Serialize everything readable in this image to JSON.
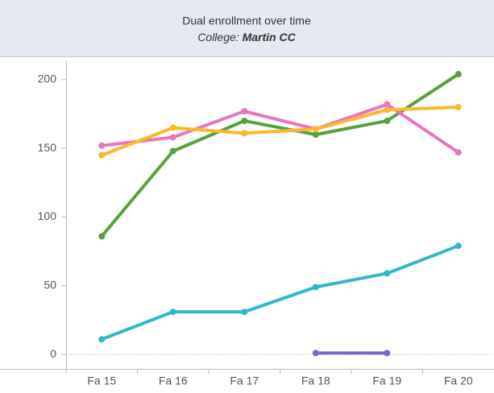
{
  "chart_data": {
    "type": "line",
    "title": "Dual enrollment over time",
    "subtitle_label": "College:",
    "subtitle_value": "Martin CC",
    "categories": [
      "Fa 15",
      "Fa 16",
      "Fa 17",
      "Fa 18",
      "Fa 19",
      "Fa 20"
    ],
    "series": [
      {
        "color": "#57a13b",
        "values": [
          86,
          148,
          170,
          160,
          170,
          204
        ]
      },
      {
        "color": "#e875be",
        "values": [
          152,
          158,
          177,
          164,
          182,
          147
        ]
      },
      {
        "color": "#fbb82b",
        "values": [
          145,
          165,
          161,
          164,
          178,
          180
        ]
      },
      {
        "color": "#31b8c8",
        "values": [
          11,
          31,
          31,
          49,
          59,
          79
        ]
      },
      {
        "color": "#7b68c8",
        "values": [
          null,
          null,
          null,
          1,
          1,
          null
        ]
      }
    ],
    "ylim": [
      -10.5,
      214
    ],
    "yticks": [
      0,
      50,
      100,
      150,
      200
    ],
    "zero_line": true
  }
}
